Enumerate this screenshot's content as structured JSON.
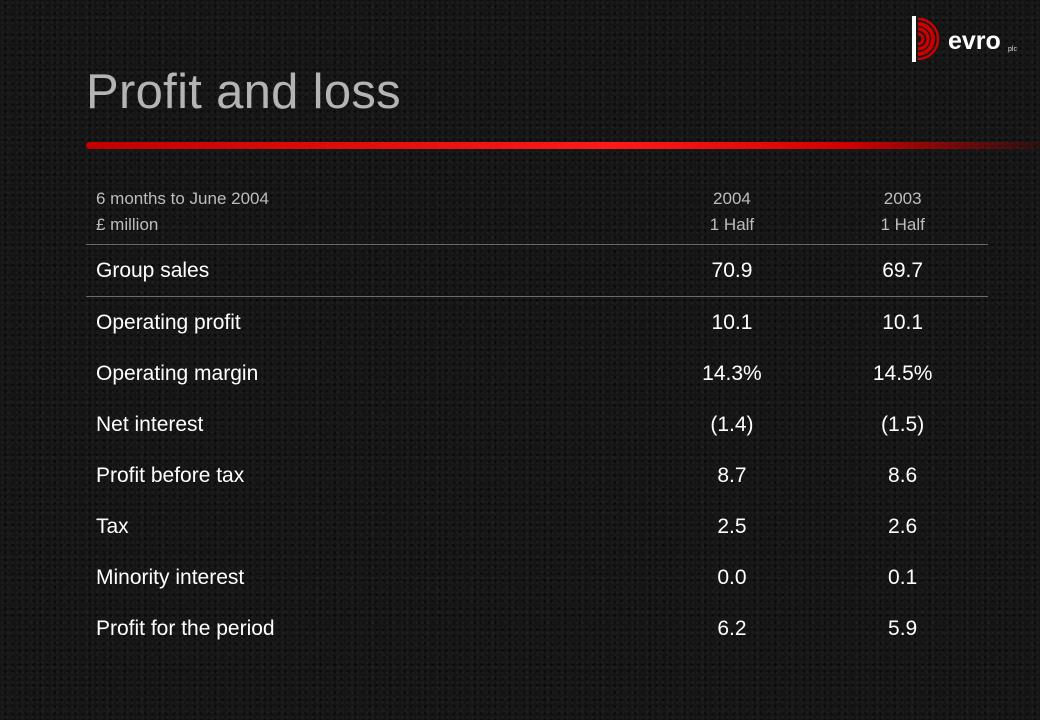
{
  "slide": {
    "title": "Profit and loss"
  },
  "logo": {
    "text": "evro",
    "suffix": "plc",
    "colors": {
      "mark": "#cc0000",
      "text": "#ffffff"
    }
  },
  "table": {
    "header": {
      "label_line1": "6 months to June 2004",
      "label_line2": "£ million",
      "col1_line1": "2004",
      "col1_line2": "1 Half",
      "col2_line1": "2003",
      "col2_line2": "1 Half"
    },
    "rows": [
      {
        "label": "Group sales",
        "v2004": "70.9",
        "v2003": "69.7"
      },
      {
        "label": "Operating profit",
        "v2004": "10.1",
        "v2003": "10.1"
      },
      {
        "label": "Operating margin",
        "v2004": "14.3%",
        "v2003": "14.5%"
      },
      {
        "label": "Net interest",
        "v2004": "(1.4)",
        "v2003": "(1.5)"
      },
      {
        "label": "Profit before tax",
        "v2004": "8.7",
        "v2003": "8.6"
      },
      {
        "label": "Tax",
        "v2004": "2.5",
        "v2003": "2.6"
      },
      {
        "label": "Minority interest",
        "v2004": "0.0",
        "v2003": "0.1"
      },
      {
        "label": "Profit for the period",
        "v2004": "6.2",
        "v2003": "5.9"
      }
    ]
  },
  "colors": {
    "background": "#151515",
    "title": "#b4b4b4",
    "accent_bar": "#e00000",
    "header_text": "#bdbdbd",
    "body_text": "#ffffff"
  }
}
